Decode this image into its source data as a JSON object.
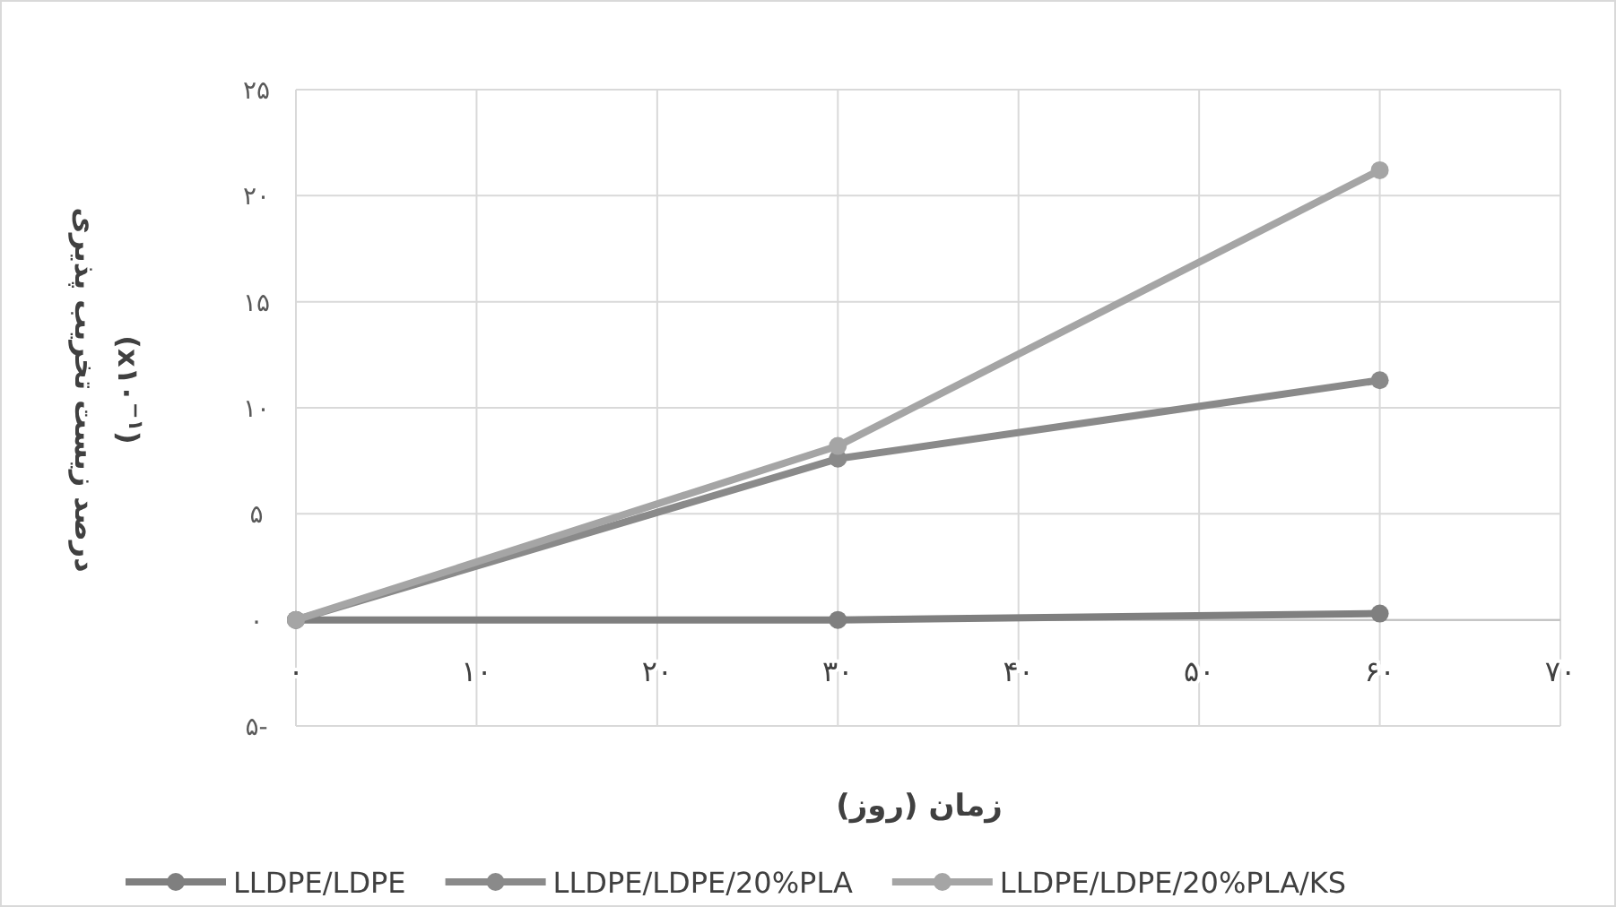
{
  "chart_data": {
    "type": "line",
    "xlabel": "زمان (روز)",
    "ylabel": [
      "درصد زیست تخریب پذیری",
      "(x۱۰$^{−۱}$)"
    ],
    "x": [
      0,
      30,
      60
    ],
    "series": [
      {
        "name": "LLDPE/LDPE",
        "color": "#7f7f7f",
        "values": [
          0,
          0,
          0.3
        ]
      },
      {
        "name": "LLDPE/LDPE/20%PLA",
        "color": "#8a8a8a",
        "values": [
          0,
          7.6,
          11.3
        ]
      },
      {
        "name": "LLDPE/LDPE/20%PLA/KS",
        "color": "#a5a5a5",
        "values": [
          0,
          8.2,
          21.2
        ]
      }
    ],
    "xlim": [
      0,
      70
    ],
    "xticks": [
      {
        "value": 0,
        "label": "۰"
      },
      {
        "value": 10,
        "label": "۱۰"
      },
      {
        "value": 20,
        "label": "۲۰"
      },
      {
        "value": 30,
        "label": "۳۰"
      },
      {
        "value": 40,
        "label": "۴۰"
      },
      {
        "value": 50,
        "label": "۵۰"
      },
      {
        "value": 60,
        "label": "۶۰"
      },
      {
        "value": 70,
        "label": "۷۰"
      }
    ],
    "ylim": [
      -5,
      25
    ],
    "yticks": [
      {
        "value": -5,
        "label": "۵-"
      },
      {
        "value": 0,
        "label": "۰"
      },
      {
        "value": 5,
        "label": "۵"
      },
      {
        "value": 10,
        "label": "۱۰"
      },
      {
        "value": 15,
        "label": "۱۵"
      },
      {
        "value": 20,
        "label": "۲۰"
      },
      {
        "value": 25,
        "label": "۲۵"
      }
    ],
    "grid": true,
    "legend": "bottom",
    "marker": "circle",
    "line_style": "solid"
  }
}
